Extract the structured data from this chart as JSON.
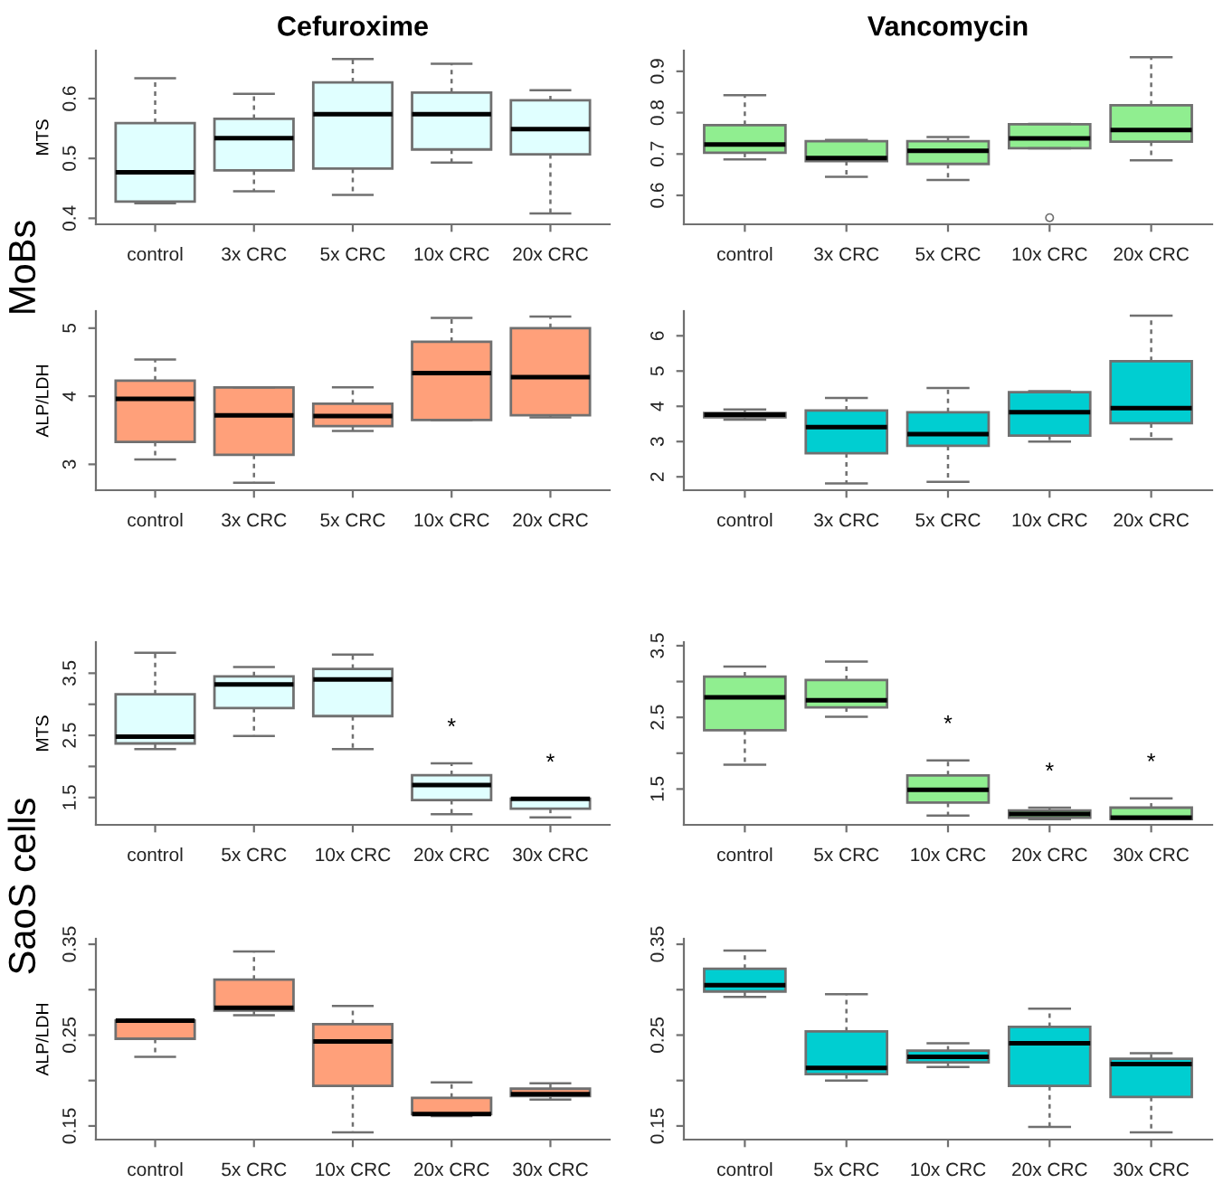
{
  "chart_data": [
    {
      "type": "box",
      "title": "Cefuroxime",
      "ylabel": "MTS",
      "annotations": [
        "MoBs"
      ],
      "categories": [
        "control",
        "3x CRC",
        "5x CRC",
        "10x CRC",
        "20x CRC"
      ],
      "ylim": [
        0.39,
        0.68
      ],
      "yticks": [
        0.4,
        0.5,
        0.6
      ],
      "series": [
        {
          "color": "#e0ffff",
          "boxes": [
            {
              "low": 0.425,
              "q1": 0.428,
              "median": 0.477,
              "q3": 0.559,
              "high": 0.634
            },
            {
              "low": 0.445,
              "q1": 0.48,
              "median": 0.534,
              "q3": 0.566,
              "high": 0.608
            },
            {
              "low": 0.439,
              "q1": 0.483,
              "median": 0.574,
              "q3": 0.627,
              "high": 0.666
            },
            {
              "low": 0.493,
              "q1": 0.515,
              "median": 0.574,
              "q3": 0.61,
              "high": 0.658
            },
            {
              "low": 0.408,
              "q1": 0.507,
              "median": 0.549,
              "q3": 0.597,
              "high": 0.614
            }
          ]
        }
      ]
    },
    {
      "type": "box",
      "title": "Vancomycin",
      "categories": [
        "control",
        "3x CRC",
        "5x CRC",
        "10x CRC",
        "20x CRC"
      ],
      "ylim": [
        0.53,
        0.95
      ],
      "yticks": [
        0.6,
        0.7,
        0.8,
        0.9
      ],
      "series": [
        {
          "color": "#90ee90",
          "boxes": [
            {
              "low": 0.687,
              "q1": 0.703,
              "median": 0.723,
              "q3": 0.77,
              "high": 0.842
            },
            {
              "low": 0.645,
              "q1": 0.683,
              "median": 0.69,
              "q3": 0.731,
              "high": 0.734
            },
            {
              "low": 0.637,
              "q1": 0.676,
              "median": 0.708,
              "q3": 0.731,
              "high": 0.741
            },
            {
              "low": 0.714,
              "q1": 0.714,
              "median": 0.738,
              "q3": 0.772,
              "high": 0.773,
              "outliers": [
                0.546
              ]
            },
            {
              "low": 0.685,
              "q1": 0.73,
              "median": 0.758,
              "q3": 0.818,
              "high": 0.934
            }
          ]
        }
      ]
    },
    {
      "type": "box",
      "ylabel": "ALP/LDH",
      "categories": [
        "control",
        "3x CRC",
        "5x CRC",
        "10x CRC",
        "20x CRC"
      ],
      "ylim": [
        2.62,
        5.25
      ],
      "yticks": [
        3,
        4,
        5
      ],
      "series": [
        {
          "color": "#ffa07a",
          "boxes": [
            {
              "low": 3.07,
              "q1": 3.33,
              "median": 3.96,
              "q3": 4.23,
              "high": 4.54
            },
            {
              "low": 2.73,
              "q1": 3.14,
              "median": 3.72,
              "q3": 4.13,
              "high": 4.13
            },
            {
              "low": 3.49,
              "q1": 3.56,
              "median": 3.71,
              "q3": 3.89,
              "high": 4.13
            },
            {
              "low": 3.65,
              "q1": 3.65,
              "median": 4.34,
              "q3": 4.8,
              "high": 5.15
            },
            {
              "low": 3.69,
              "q1": 3.72,
              "median": 4.28,
              "q3": 5.0,
              "high": 5.17
            }
          ]
        }
      ]
    },
    {
      "type": "box",
      "categories": [
        "control",
        "3x CRC",
        "5x CRC",
        "10x CRC",
        "20x CRC"
      ],
      "ylim": [
        1.62,
        6.7
      ],
      "yticks": [
        2,
        3,
        4,
        5,
        6
      ],
      "series": [
        {
          "color": "#00ced1",
          "boxes": [
            {
              "low": 3.62,
              "q1": 3.69,
              "median": 3.76,
              "q3": 3.81,
              "high": 3.91
            },
            {
              "low": 1.81,
              "q1": 2.67,
              "median": 3.41,
              "q3": 3.88,
              "high": 4.24
            },
            {
              "low": 1.86,
              "q1": 2.88,
              "median": 3.21,
              "q3": 3.83,
              "high": 4.52
            },
            {
              "low": 3.0,
              "q1": 3.17,
              "median": 3.83,
              "q3": 4.4,
              "high": 4.43
            },
            {
              "low": 3.07,
              "q1": 3.52,
              "median": 3.95,
              "q3": 5.28,
              "high": 6.57
            }
          ]
        }
      ]
    },
    {
      "type": "box",
      "ylabel": "MTS",
      "annotations": [
        "SaoS cells",
        "*",
        "*"
      ],
      "categories": [
        "control",
        "5x CRC",
        "10x CRC",
        "20x CRC",
        "30x CRC"
      ],
      "ylim": [
        1.06,
        4.0
      ],
      "yticks": [
        1.5,
        {
          "value": 2,
          "label": null
        },
        2.5,
        {
          "value": 3,
          "label": null
        },
        3.5
      ],
      "series": [
        {
          "color": "#e0ffff",
          "boxes": [
            {
              "low": 2.28,
              "q1": 2.37,
              "median": 2.48,
              "q3": 3.16,
              "high": 3.83
            },
            {
              "low": 2.49,
              "q1": 2.94,
              "median": 3.32,
              "q3": 3.45,
              "high": 3.6
            },
            {
              "low": 2.28,
              "q1": 2.81,
              "median": 3.4,
              "q3": 3.57,
              "high": 3.8
            },
            {
              "low": 1.23,
              "q1": 1.46,
              "median": 1.7,
              "q3": 1.86,
              "high": 2.05
            },
            {
              "low": 1.18,
              "q1": 1.32,
              "median": 1.48,
              "q3": 1.48,
              "high": 1.48
            }
          ]
        }
      ]
    },
    {
      "type": "box",
      "annotations": [
        "*",
        "*",
        "*"
      ],
      "categories": [
        "control",
        "5x CRC",
        "10x CRC",
        "20x CRC",
        "30x CRC"
      ],
      "ylim": [
        1.0,
        3.55
      ],
      "yticks": [
        1.5,
        {
          "value": 2,
          "label": null
        },
        2.5,
        {
          "value": 3,
          "label": null
        },
        3.5
      ],
      "series": [
        {
          "color": "#90ee90",
          "boxes": [
            {
              "low": 1.84,
              "q1": 2.32,
              "median": 2.78,
              "q3": 3.07,
              "high": 3.21
            },
            {
              "low": 2.51,
              "q1": 2.64,
              "median": 2.74,
              "q3": 3.02,
              "high": 3.28
            },
            {
              "low": 1.13,
              "q1": 1.31,
              "median": 1.49,
              "q3": 1.69,
              "high": 1.9
            },
            {
              "low": 1.08,
              "q1": 1.1,
              "median": 1.15,
              "q3": 1.2,
              "high": 1.24
            },
            {
              "low": 1.08,
              "q1": 1.08,
              "median": 1.1,
              "q3": 1.24,
              "high": 1.37
            }
          ]
        }
      ]
    },
    {
      "type": "box",
      "ylabel": "ALP/LDH",
      "categories": [
        "control",
        "5x CRC",
        "10x CRC",
        "20x CRC",
        "30x CRC"
      ],
      "ylim": [
        0.135,
        0.356
      ],
      "yticks": [
        0.15,
        {
          "value": 0.2,
          "label": null
        },
        0.25,
        {
          "value": 0.3,
          "label": null
        },
        0.35
      ],
      "series": [
        {
          "color": "#ffa07a",
          "boxes": [
            {
              "low": 0.226,
              "q1": 0.246,
              "median": 0.266,
              "q3": 0.266,
              "high": 0.266
            },
            {
              "low": 0.272,
              "q1": 0.277,
              "median": 0.28,
              "q3": 0.311,
              "high": 0.342
            },
            {
              "low": 0.143,
              "q1": 0.194,
              "median": 0.243,
              "q3": 0.262,
              "high": 0.282
            },
            {
              "low": 0.161,
              "q1": 0.163,
              "median": 0.163,
              "q3": 0.181,
              "high": 0.198
            },
            {
              "low": 0.179,
              "q1": 0.183,
              "median": 0.185,
              "q3": 0.191,
              "high": 0.197
            }
          ]
        }
      ]
    },
    {
      "type": "box",
      "categories": [
        "control",
        "5x CRC",
        "10x CRC",
        "20x CRC",
        "30x CRC"
      ],
      "ylim": [
        0.135,
        0.356
      ],
      "yticks": [
        0.15,
        {
          "value": 0.2,
          "label": null
        },
        0.25,
        {
          "value": 0.3,
          "label": null
        },
        0.35
      ],
      "series": [
        {
          "color": "#00ced1",
          "boxes": [
            {
              "low": 0.292,
              "q1": 0.298,
              "median": 0.305,
              "q3": 0.323,
              "high": 0.343
            },
            {
              "low": 0.2,
              "q1": 0.207,
              "median": 0.214,
              "q3": 0.254,
              "high": 0.295
            },
            {
              "low": 0.215,
              "q1": 0.22,
              "median": 0.226,
              "q3": 0.233,
              "high": 0.241
            },
            {
              "low": 0.149,
              "q1": 0.194,
              "median": 0.241,
              "q3": 0.259,
              "high": 0.279
            },
            {
              "low": 0.143,
              "q1": 0.182,
              "median": 0.218,
              "q3": 0.224,
              "high": 0.23
            }
          ]
        }
      ]
    }
  ]
}
